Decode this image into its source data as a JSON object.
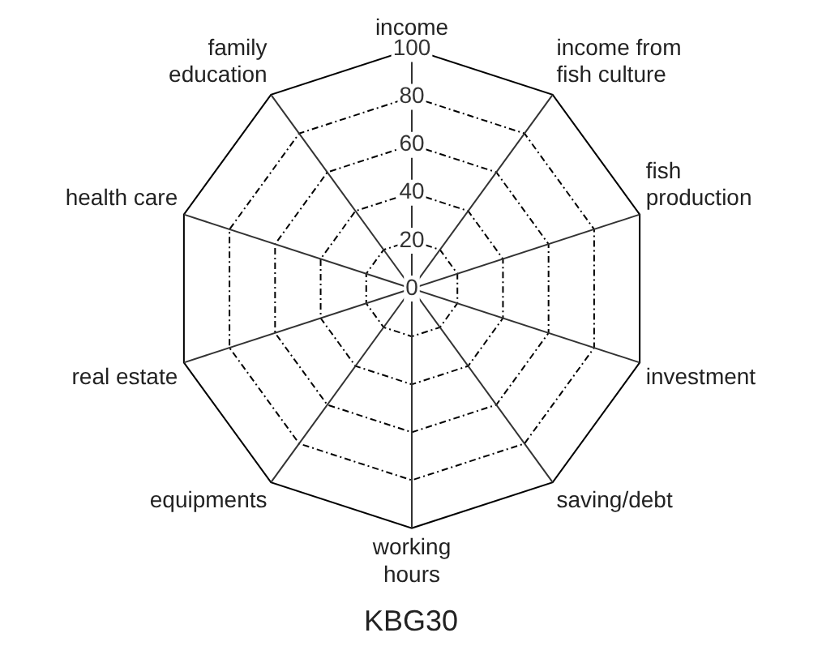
{
  "chart_data": {
    "type": "radar",
    "title": "KBG30",
    "categories": [
      "income",
      "income from fish culture",
      "fish production",
      "investment",
      "saving/debt",
      "working hours",
      "equipments",
      "real estate",
      "health care",
      "family education"
    ],
    "ylim": [
      0,
      100
    ],
    "yticks": [
      0,
      20,
      40,
      60,
      80,
      100
    ],
    "grid": true,
    "legend": false
  }
}
